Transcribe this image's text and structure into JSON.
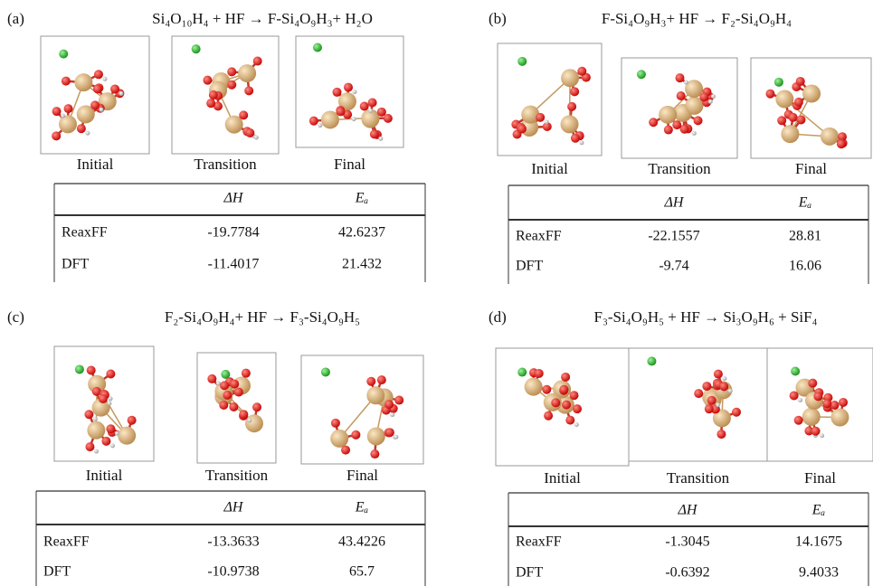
{
  "panels": [
    {
      "label": "(a)",
      "equation": "Si₄O₁₀H₄ + HF → F-Si₄O₉H₃+ H₂O",
      "snapshots": [
        "Initial",
        "Transition",
        "Final"
      ],
      "table": {
        "columns": [
          "ΔH",
          "Eₐ"
        ],
        "rows": [
          {
            "method": "ReaxFF",
            "values": [
              -19.7784,
              42.6237
            ]
          },
          {
            "method": "DFT",
            "values": [
              -11.4017,
              21.432
            ]
          }
        ]
      }
    },
    {
      "label": "(b)",
      "equation": "F-Si₄O₉H₃+ HF → F₂-Si₄O₉H₄",
      "snapshots": [
        "Initial",
        "Transition",
        "Final"
      ],
      "table": {
        "columns": [
          "ΔH",
          "Eₐ"
        ],
        "rows": [
          {
            "method": "ReaxFF",
            "values": [
              -22.1557,
              28.81
            ]
          },
          {
            "method": "DFT",
            "values": [
              -9.74,
              16.06
            ]
          }
        ]
      }
    },
    {
      "label": "(c)",
      "equation": "F₂-Si₄O₉H₄+ HF → F₃-Si₄O₉H₅",
      "snapshots": [
        "Initial",
        "Transition",
        "Final"
      ],
      "table": {
        "columns": [
          "ΔH",
          "Eₐ"
        ],
        "rows": [
          {
            "method": "ReaxFF",
            "values": [
              -13.3633,
              43.4226
            ]
          },
          {
            "method": "DFT",
            "values": [
              -10.9738,
              65.7
            ]
          }
        ]
      }
    },
    {
      "label": "(d)",
      "equation": "F₃-Si₄O₉H₅ + HF → Si₃O₉H₆ + SiF₄",
      "snapshots": [
        "Initial",
        "Transition",
        "Final"
      ],
      "table": {
        "columns": [
          "ΔH",
          "Eₐ"
        ],
        "rows": [
          {
            "method": "ReaxFF",
            "values": [
              -1.3045,
              14.1675
            ]
          },
          {
            "method": "DFT",
            "values": [
              -0.6392,
              9.4033
            ]
          }
        ]
      }
    }
  ]
}
